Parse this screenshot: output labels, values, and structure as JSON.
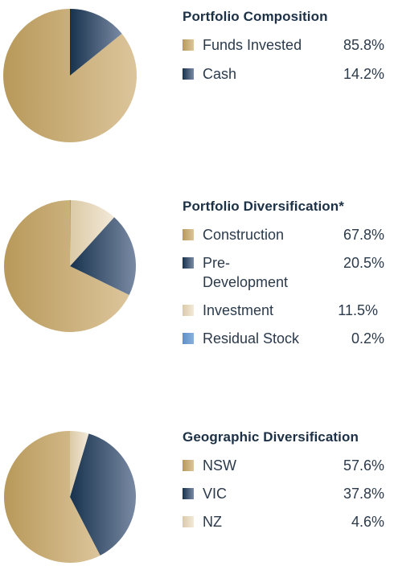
{
  "chart_data": [
    {
      "type": "pie",
      "title": "Portfolio Composition",
      "slices": [
        {
          "label": "Funds Invested",
          "value": 85.8,
          "display": "85.8%",
          "color": "#c8aa6c"
        },
        {
          "label": "Cash",
          "value": 14.2,
          "display": "14.2%",
          "color": "#1f3a55"
        }
      ]
    },
    {
      "type": "pie",
      "title": "Portfolio Diversification*",
      "slices": [
        {
          "label": "Construction",
          "value": 67.8,
          "display": "67.8%",
          "color": "#c8aa6c"
        },
        {
          "label": "Pre-Development",
          "value": 20.5,
          "display": "20.5%",
          "color": "#1f3a55"
        },
        {
          "label": "Investment",
          "value": 11.5,
          "display": "11.5%",
          "color": "#e6d6b8"
        },
        {
          "label": "Residual Stock",
          "value": 0.2,
          "display": "0.2%",
          "color": "#6f9ccf"
        }
      ]
    },
    {
      "type": "pie",
      "title": "Geographic Diversification",
      "slices": [
        {
          "label": "NSW",
          "value": 57.6,
          "display": "57.6%",
          "color": "#c8aa6c"
        },
        {
          "label": "VIC",
          "value": 37.8,
          "display": "37.8%",
          "color": "#1f3a55"
        },
        {
          "label": "NZ",
          "value": 4.6,
          "display": "4.6%",
          "color": "#e6d6b8"
        }
      ]
    }
  ]
}
